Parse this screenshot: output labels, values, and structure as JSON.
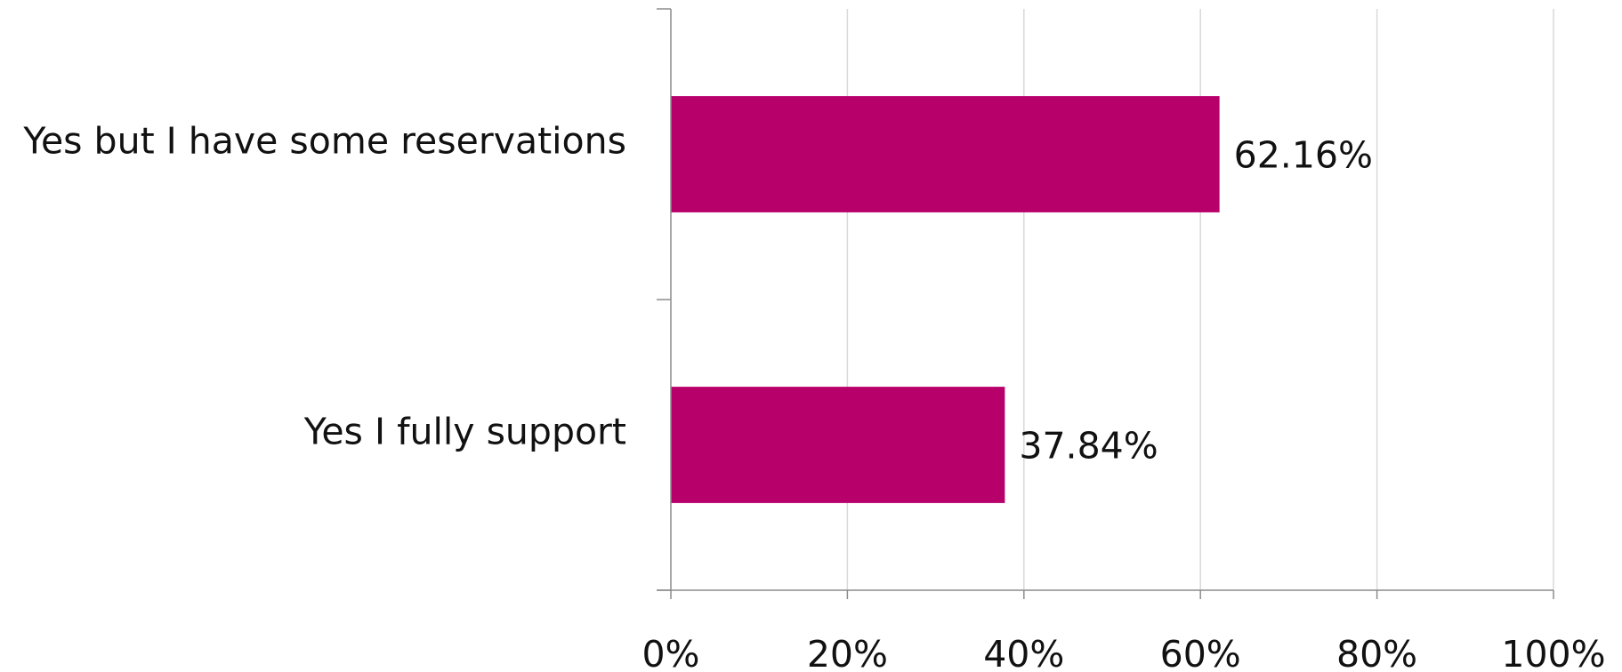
{
  "chart_data": {
    "type": "bar",
    "orientation": "horizontal",
    "categories": [
      "Yes but I have some reservations",
      "Yes I fully support"
    ],
    "values": [
      62.16,
      37.84
    ],
    "value_labels": [
      "62.16%",
      "37.84%"
    ],
    "title": "",
    "xlabel": "",
    "ylabel": "",
    "xlim": [
      0,
      100
    ],
    "x_ticks": [
      0,
      20,
      40,
      60,
      80,
      100
    ],
    "x_tick_labels": [
      "0%",
      "20%",
      "40%",
      "60%",
      "80%",
      "100%"
    ],
    "grid": "vertical",
    "legend": "none",
    "bar_color": "#b8006b"
  }
}
